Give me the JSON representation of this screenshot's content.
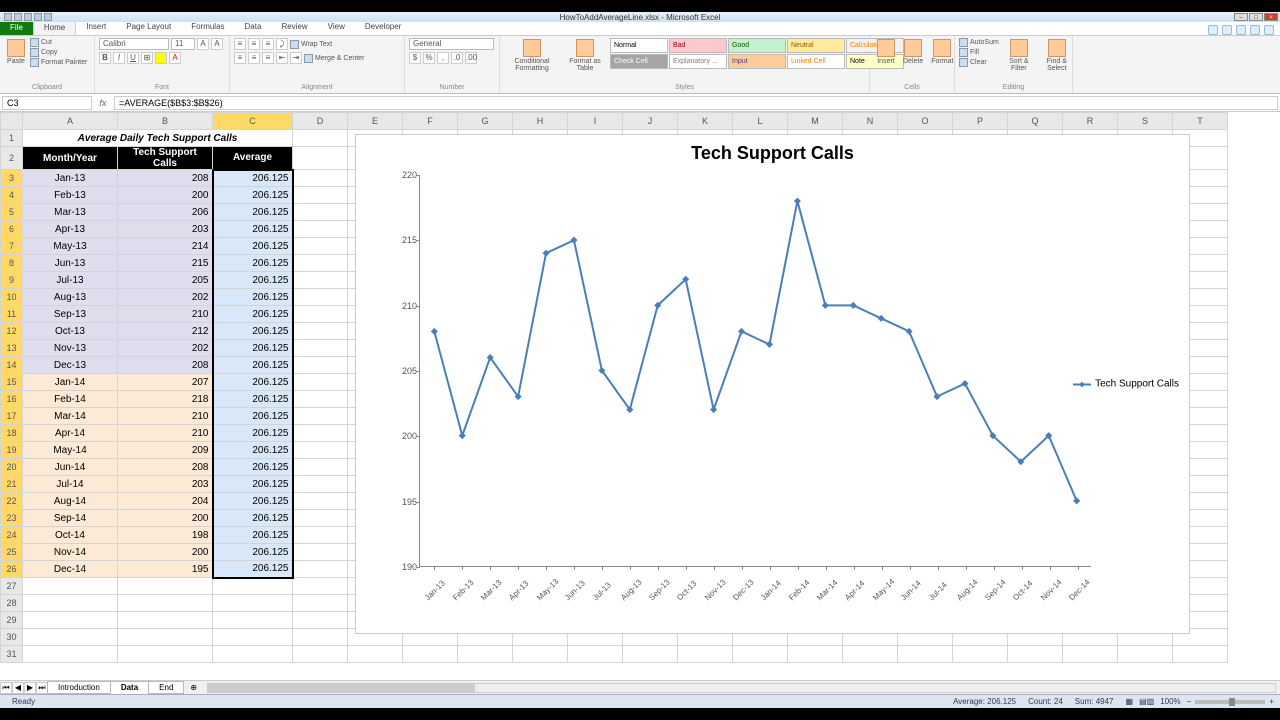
{
  "window": {
    "title": "HowToAddAverageLine.xlsx - Microsoft Excel"
  },
  "tabs": {
    "file": "File",
    "list": [
      "Home",
      "Insert",
      "Page Layout",
      "Formulas",
      "Data",
      "Review",
      "View",
      "Developer"
    ],
    "active": "Home"
  },
  "ribbon": {
    "clipboard": {
      "label": "Clipboard",
      "paste": "Paste",
      "cut": "Cut",
      "copy": "Copy",
      "painter": "Format Painter"
    },
    "font": {
      "label": "Font",
      "name": "Calibri",
      "size": "11"
    },
    "alignment": {
      "label": "Alignment",
      "wrap": "Wrap Text",
      "merge": "Merge & Center"
    },
    "number": {
      "label": "Number",
      "format": "General"
    },
    "styles": {
      "label": "Styles",
      "cond": "Conditional Formatting",
      "table": "Format as Table",
      "cell": "Cell Styles",
      "cells": [
        {
          "t": "Normal",
          "bg": "#ffffff",
          "c": "#000"
        },
        {
          "t": "Bad",
          "bg": "#ffc7ce",
          "c": "#9c0006"
        },
        {
          "t": "Good",
          "bg": "#c6efce",
          "c": "#006100"
        },
        {
          "t": "Neutral",
          "bg": "#ffeb9c",
          "c": "#9c5700"
        },
        {
          "t": "Calculation",
          "bg": "#f2f2f2",
          "c": "#fa7d00"
        },
        {
          "t": "Check Cell",
          "bg": "#a5a5a5",
          "c": "#ffffff"
        },
        {
          "t": "Explanatory ...",
          "bg": "#ffffff",
          "c": "#7f7f7f"
        },
        {
          "t": "Input",
          "bg": "#ffcc99",
          "c": "#3f3f76"
        },
        {
          "t": "Linked Cell",
          "bg": "#ffffff",
          "c": "#fa7d00"
        },
        {
          "t": "Note",
          "bg": "#ffffcc",
          "c": "#000"
        }
      ]
    },
    "cells": {
      "label": "Cells",
      "insert": "Insert",
      "delete": "Delete",
      "format": "Format"
    },
    "editing": {
      "label": "Editing",
      "autosum": "AutoSum",
      "fill": "Fill",
      "clear": "Clear",
      "sort": "Sort & Filter",
      "find": "Find & Select"
    }
  },
  "formula_bar": {
    "name_box": "C3",
    "formula": "=AVERAGE($B$3:$B$26)"
  },
  "columns": [
    "A",
    "B",
    "C",
    "D",
    "E",
    "F",
    "G",
    "H",
    "I",
    "J",
    "K",
    "L",
    "M",
    "N",
    "O",
    "P",
    "Q",
    "R",
    "S",
    "T"
  ],
  "col_widths": {
    "A": 95,
    "B": 95,
    "C": 80,
    "default": 55
  },
  "active_col": "C",
  "selected_rows_start": 3,
  "selected_rows_end": 26,
  "data": {
    "title": "Average Daily Tech Support Calls",
    "headers": {
      "a": "Month/Year",
      "b": "Tech Support Calls",
      "c": "Average"
    },
    "rows": [
      {
        "m": "Jan-13",
        "v": 208,
        "avg": 206.125,
        "y": 13
      },
      {
        "m": "Feb-13",
        "v": 200,
        "avg": 206.125,
        "y": 13
      },
      {
        "m": "Mar-13",
        "v": 206,
        "avg": 206.125,
        "y": 13
      },
      {
        "m": "Apr-13",
        "v": 203,
        "avg": 206.125,
        "y": 13
      },
      {
        "m": "May-13",
        "v": 214,
        "avg": 206.125,
        "y": 13
      },
      {
        "m": "Jun-13",
        "v": 215,
        "avg": 206.125,
        "y": 13
      },
      {
        "m": "Jul-13",
        "v": 205,
        "avg": 206.125,
        "y": 13
      },
      {
        "m": "Aug-13",
        "v": 202,
        "avg": 206.125,
        "y": 13
      },
      {
        "m": "Sep-13",
        "v": 210,
        "avg": 206.125,
        "y": 13
      },
      {
        "m": "Oct-13",
        "v": 212,
        "avg": 206.125,
        "y": 13
      },
      {
        "m": "Nov-13",
        "v": 202,
        "avg": 206.125,
        "y": 13
      },
      {
        "m": "Dec-13",
        "v": 208,
        "avg": 206.125,
        "y": 13
      },
      {
        "m": "Jan-14",
        "v": 207,
        "avg": 206.125,
        "y": 14
      },
      {
        "m": "Feb-14",
        "v": 218,
        "avg": 206.125,
        "y": 14
      },
      {
        "m": "Mar-14",
        "v": 210,
        "avg": 206.125,
        "y": 14
      },
      {
        "m": "Apr-14",
        "v": 210,
        "avg": 206.125,
        "y": 14
      },
      {
        "m": "May-14",
        "v": 209,
        "avg": 206.125,
        "y": 14
      },
      {
        "m": "Jun-14",
        "v": 208,
        "avg": 206.125,
        "y": 14
      },
      {
        "m": "Jul-14",
        "v": 203,
        "avg": 206.125,
        "y": 14
      },
      {
        "m": "Aug-14",
        "v": 204,
        "avg": 206.125,
        "y": 14
      },
      {
        "m": "Sep-14",
        "v": 200,
        "avg": 206.125,
        "y": 14
      },
      {
        "m": "Oct-14",
        "v": 198,
        "avg": 206.125,
        "y": 14
      },
      {
        "m": "Nov-14",
        "v": 200,
        "avg": 206.125,
        "y": 14
      },
      {
        "m": "Dec-14",
        "v": 195,
        "avg": 206.125,
        "y": 14
      }
    ]
  },
  "chart": {
    "type": "line",
    "title": "Tech Support Calls",
    "title_fontsize": 18,
    "series_name": "Tech Support Calls",
    "line_color": "#4a7ebb",
    "marker_color": "#4a7ebb",
    "marker_shape": "diamond",
    "marker_size": 5,
    "line_width": 2,
    "background_color": "#ffffff",
    "axis_color": "#888888",
    "tick_color": "#595959",
    "ylim": [
      190,
      220
    ],
    "ytick_step": 5,
    "x_categories": [
      "Jan-13",
      "Feb-13",
      "Mar-13",
      "Apr-13",
      "May-13",
      "Jun-13",
      "Jul-13",
      "Aug-13",
      "Sep-13",
      "Oct-13",
      "Nov-13",
      "Dec-13",
      "Jan-14",
      "Feb-14",
      "Mar-14",
      "Apr-14",
      "May-14",
      "Jun-14",
      "Jul-14",
      "Aug-14",
      "Sep-14",
      "Oct-14",
      "Nov-14",
      "Dec-14"
    ],
    "y_values": [
      208,
      200,
      206,
      203,
      214,
      215,
      205,
      202,
      210,
      212,
      202,
      208,
      207,
      218,
      210,
      210,
      209,
      208,
      203,
      204,
      200,
      198,
      200,
      195
    ],
    "label_fontsize": 9
  },
  "sheet_tabs": {
    "tabs": [
      "Introduction",
      "Data",
      "End"
    ],
    "active": "Data"
  },
  "status": {
    "mode": "Ready",
    "average": "Average: 206.125",
    "count": "Count: 24",
    "sum": "Sum: 4947",
    "zoom": "100%"
  }
}
